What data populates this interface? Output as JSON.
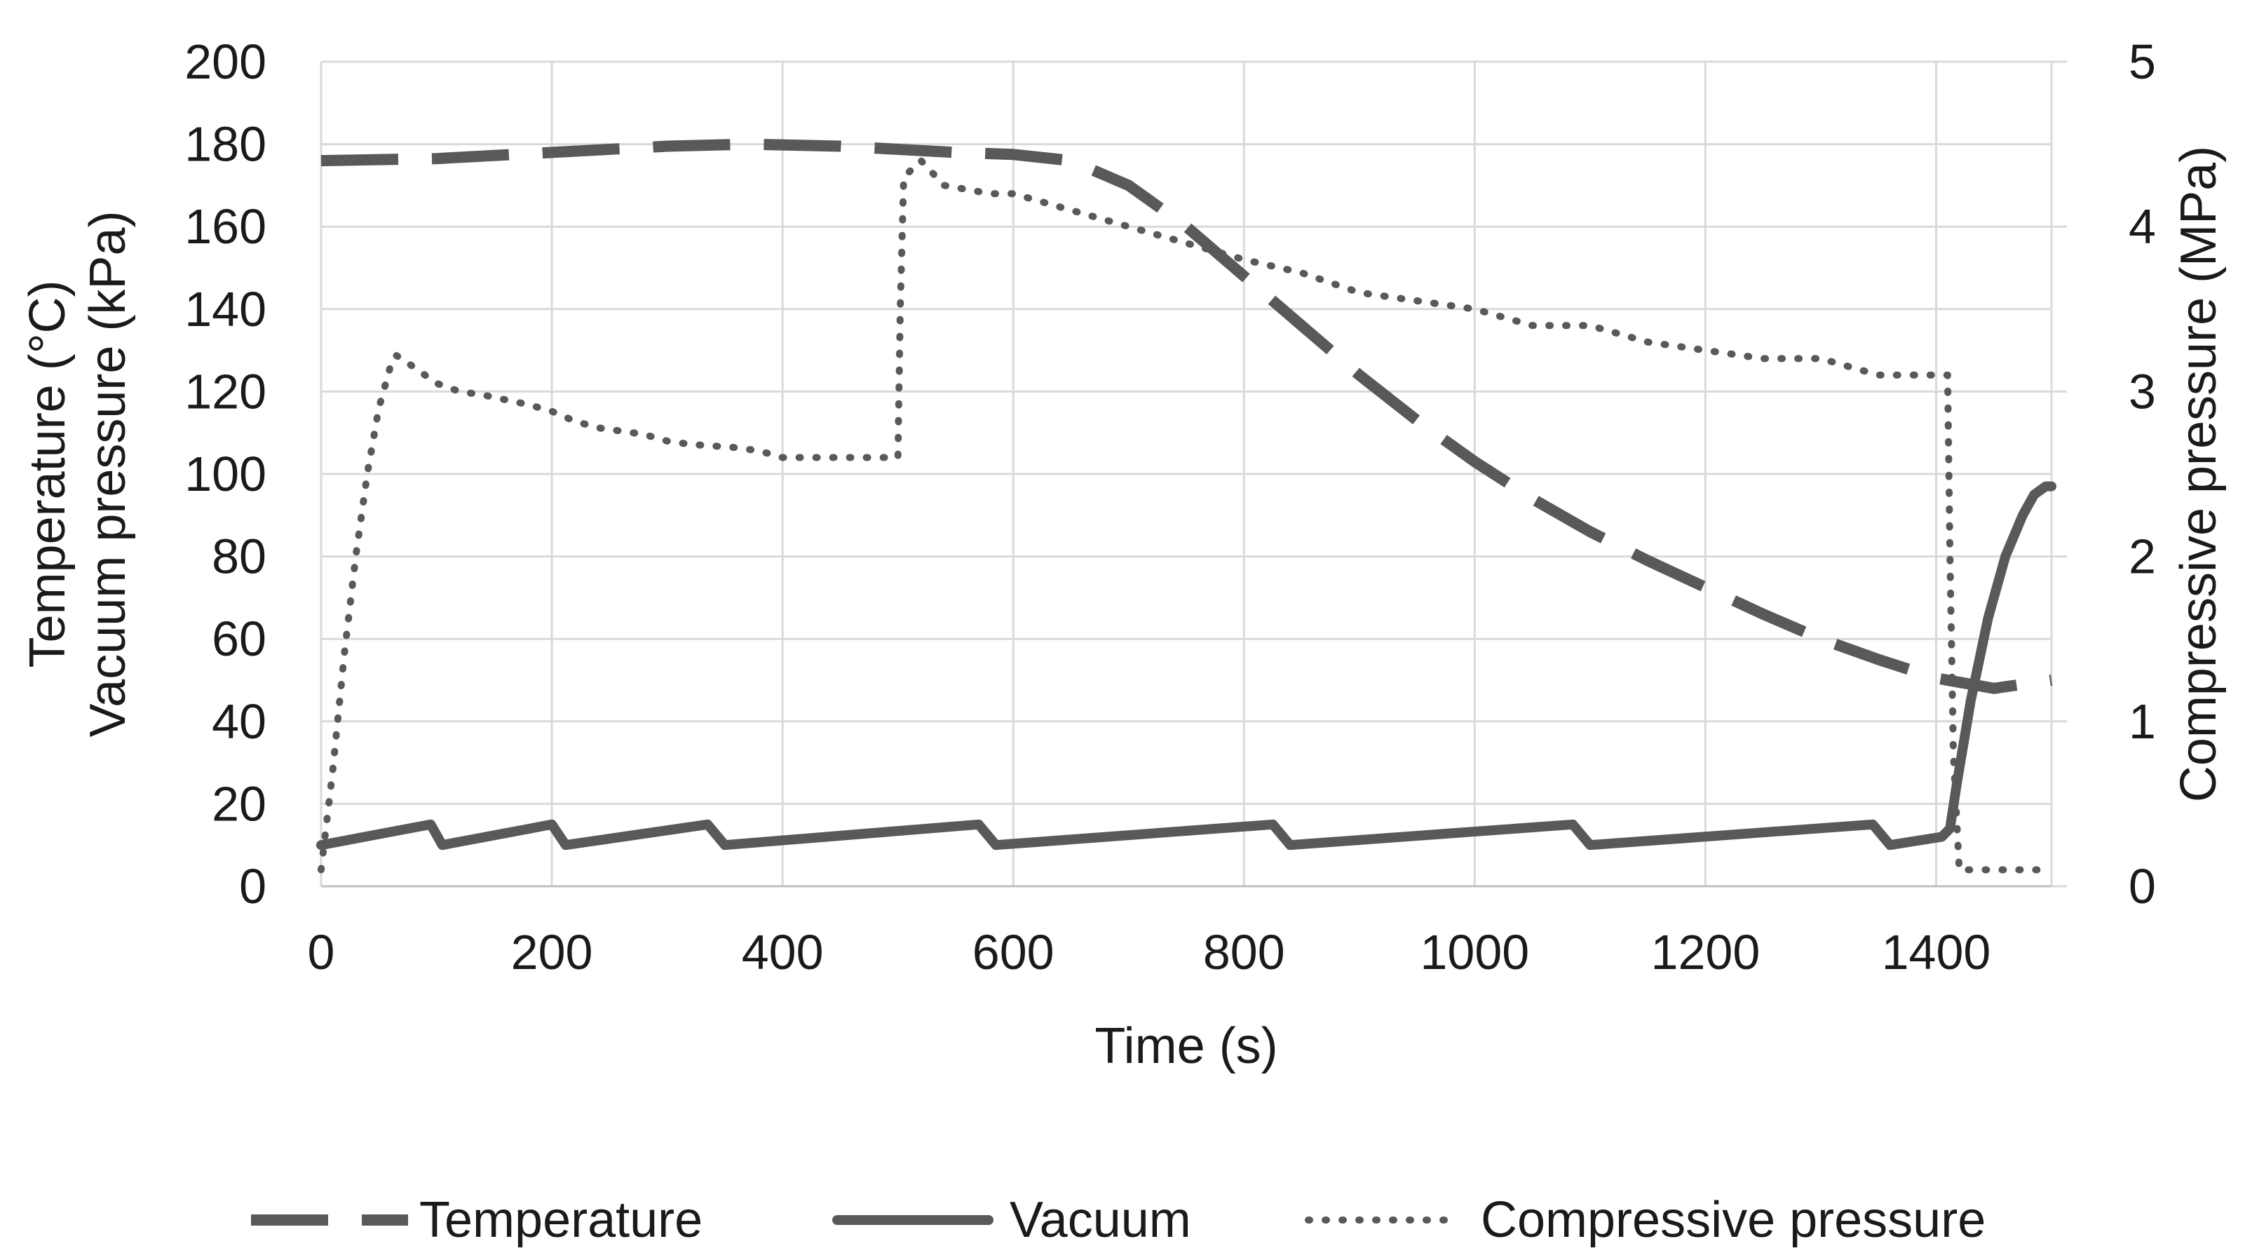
{
  "chart_data": {
    "type": "line",
    "title": "",
    "xlabel": "Time (s)",
    "ylabel_left": [
      "Temperature (°C)",
      "Vacuum pressure (kPa)"
    ],
    "ylabel_right": "Compressive pressure (MPa)",
    "xlim": [
      0,
      1500
    ],
    "ylim_left": [
      0,
      200
    ],
    "ylim_right": [
      0,
      5
    ],
    "x_ticks": [
      "0",
      "200",
      "400",
      "600",
      "800",
      "1000",
      "1200",
      "1400"
    ],
    "y_left_ticks": [
      "0",
      "20",
      "40",
      "60",
      "80",
      "100",
      "120",
      "140",
      "160",
      "180",
      "200"
    ],
    "y_right_ticks": [
      "0",
      "1",
      "2",
      "3",
      "4",
      "5"
    ],
    "grid": true,
    "legend_position": "bottom",
    "colors": {
      "series": "#595959",
      "grid": "#d9d9d9",
      "text": "#1a1a1a"
    },
    "series": [
      {
        "name": "Temperature",
        "axis": "left",
        "style": "dashed",
        "x": [
          0,
          100,
          200,
          300,
          370,
          450,
          550,
          600,
          650,
          700,
          750,
          800,
          850,
          900,
          950,
          1000,
          1050,
          1100,
          1150,
          1200,
          1250,
          1300,
          1350,
          1400,
          1450,
          1500
        ],
        "y": [
          176,
          176.5,
          178,
          179.5,
          180,
          179.5,
          178,
          177.5,
          176,
          170,
          160,
          148,
          136,
          124,
          113,
          103,
          94,
          86,
          79,
          72.5,
          66,
          60,
          55,
          50.5,
          48,
          50
        ]
      },
      {
        "name": "Vacuum",
        "axis": "left",
        "style": "solid",
        "x": [
          0,
          95,
          105,
          200,
          212,
          335,
          350,
          570,
          585,
          825,
          840,
          1085,
          1100,
          1345,
          1360,
          1405,
          1412,
          1418,
          1430,
          1445,
          1460,
          1475,
          1485,
          1495,
          1500
        ],
        "y": [
          10,
          15,
          10,
          15,
          10,
          15,
          10,
          15,
          10,
          15,
          10,
          15,
          10,
          15,
          10,
          12,
          14,
          25,
          45,
          65,
          80,
          90,
          95,
          97,
          97
        ]
      },
      {
        "name": "Compressive pressure",
        "axis": "right",
        "style": "dotted",
        "x": [
          0,
          10,
          20,
          30,
          40,
          50,
          60,
          65,
          80,
          100,
          120,
          140,
          160,
          180,
          200,
          220,
          240,
          260,
          280,
          300,
          320,
          340,
          360,
          380,
          400,
          450,
          500,
          502,
          505,
          520,
          540,
          580,
          600,
          650,
          700,
          750,
          800,
          850,
          900,
          950,
          1000,
          1050,
          1100,
          1150,
          1200,
          1250,
          1300,
          1350,
          1410,
          1412,
          1415,
          1420,
          1500
        ],
        "y": [
          0.1,
          0.7,
          1.4,
          2.0,
          2.5,
          2.9,
          3.15,
          3.22,
          3.15,
          3.05,
          3.0,
          2.98,
          2.95,
          2.92,
          2.88,
          2.82,
          2.78,
          2.76,
          2.74,
          2.7,
          2.68,
          2.67,
          2.66,
          2.64,
          2.6,
          2.6,
          2.6,
          3.5,
          4.3,
          4.4,
          4.25,
          4.2,
          4.2,
          4.1,
          4.0,
          3.9,
          3.8,
          3.72,
          3.6,
          3.55,
          3.5,
          3.4,
          3.4,
          3.3,
          3.25,
          3.2,
          3.2,
          3.1,
          3.1,
          2.0,
          0.8,
          0.1,
          0.1
        ]
      }
    ]
  }
}
